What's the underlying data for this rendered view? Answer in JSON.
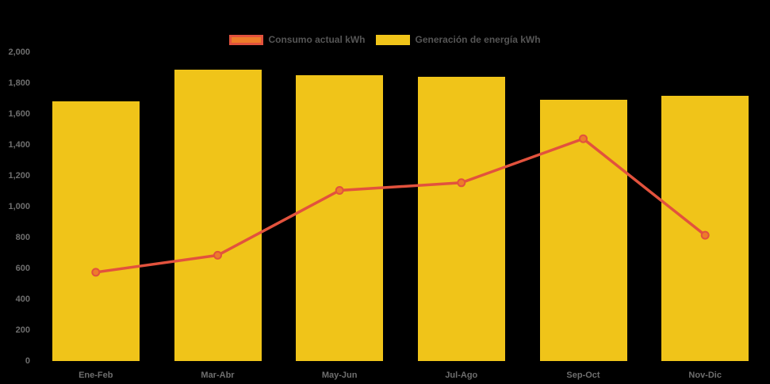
{
  "chart_data": {
    "type": "bar",
    "title": "",
    "xlabel": "",
    "ylabel": "",
    "categories": [
      "Ene-Feb",
      "Mar-Abr",
      "May-Jun",
      "Jul-Ago",
      "Sep-Oct",
      "Nov-Dic"
    ],
    "series": [
      {
        "name": "Consumo actual kWh",
        "type": "line",
        "values": [
          575,
          685,
          1105,
          1155,
          1440,
          815
        ],
        "color": "#e2523d",
        "point_fill": "#ed7c2a"
      },
      {
        "name": "Generación de energía kWh",
        "type": "bar",
        "values": [
          1680,
          1890,
          1850,
          1840,
          1690,
          1720
        ],
        "color": "#f0c419"
      }
    ],
    "ylim": [
      0,
      2000
    ],
    "y_ticks": [
      {
        "value": 0,
        "label": "0"
      },
      {
        "value": 200,
        "label": "200"
      },
      {
        "value": 400,
        "label": "400"
      },
      {
        "value": 600,
        "label": "600"
      },
      {
        "value": 800,
        "label": "800"
      },
      {
        "value": 1000,
        "label": "1,000"
      },
      {
        "value": 1200,
        "label": "1,200"
      },
      {
        "value": 1400,
        "label": "1,400"
      },
      {
        "value": 1600,
        "label": "1,600"
      },
      {
        "value": 1800,
        "label": "1,800"
      },
      {
        "value": 2000,
        "label": "2,000"
      }
    ],
    "legend_position": "top",
    "grid": false,
    "background": "#000000",
    "axis_text_color": "#6e6e6e",
    "legend_text_color": "#555555"
  }
}
